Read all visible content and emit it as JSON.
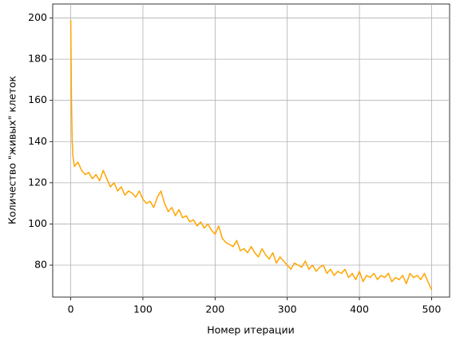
{
  "chart_data": {
    "type": "line",
    "xlabel": "Номер итерации",
    "ylabel": "Количество \"живых\" клеток",
    "x": [
      0,
      1,
      2,
      3,
      5,
      10,
      15,
      20,
      25,
      30,
      35,
      40,
      45,
      50,
      55,
      60,
      65,
      70,
      75,
      80,
      85,
      90,
      95,
      100,
      105,
      110,
      115,
      120,
      125,
      130,
      135,
      140,
      145,
      150,
      155,
      160,
      165,
      170,
      175,
      180,
      185,
      190,
      195,
      200,
      205,
      210,
      215,
      220,
      225,
      230,
      235,
      240,
      245,
      250,
      255,
      260,
      265,
      270,
      275,
      280,
      285,
      290,
      295,
      300,
      305,
      310,
      315,
      320,
      325,
      330,
      335,
      340,
      345,
      350,
      355,
      360,
      365,
      370,
      375,
      380,
      385,
      390,
      395,
      400,
      405,
      410,
      415,
      420,
      425,
      430,
      435,
      440,
      445,
      450,
      455,
      460,
      465,
      470,
      475,
      480,
      485,
      490,
      495,
      500
    ],
    "values": [
      199,
      160,
      140,
      133,
      128,
      130,
      126,
      124,
      125,
      122,
      124,
      121,
      126,
      122,
      118,
      120,
      116,
      118,
      114,
      116,
      115,
      113,
      116,
      112,
      110,
      111,
      108,
      113,
      116,
      110,
      106,
      108,
      104,
      107,
      103,
      104,
      101,
      102,
      99,
      101,
      98,
      100,
      97,
      95,
      99,
      93,
      91,
      90,
      89,
      92,
      87,
      88,
      86,
      89,
      86,
      84,
      88,
      85,
      83,
      86,
      81,
      84,
      82,
      80,
      78,
      81,
      80,
      79,
      82,
      78,
      80,
      77,
      79,
      80,
      76,
      78,
      75,
      77,
      76,
      78,
      74,
      76,
      73,
      77,
      72,
      75,
      74,
      76,
      73,
      75,
      74,
      76,
      72,
      74,
      73,
      75,
      71,
      76,
      74,
      75,
      73,
      76,
      72,
      68
    ],
    "color": "#ffa500",
    "xlim": [
      -25,
      525
    ],
    "ylim": [
      64.5,
      206.8
    ],
    "xticks": [
      0,
      100,
      200,
      300,
      400,
      500
    ],
    "yticks": [
      80,
      100,
      120,
      140,
      160,
      180,
      200
    ],
    "grid": true
  }
}
